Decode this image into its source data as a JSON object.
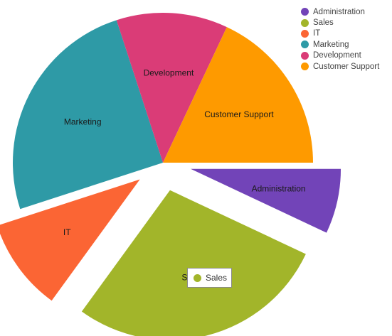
{
  "chart_data": {
    "type": "pie",
    "categories": [
      "Administration",
      "Sales",
      "IT",
      "Marketing",
      "Development",
      "Customer Support"
    ],
    "values": [
      7,
      28,
      10,
      25,
      12,
      18
    ],
    "colors": [
      "#7244b8",
      "#a2b52a",
      "#fb6534",
      "#2e9aa6",
      "#da3c77",
      "#fe9a00"
    ],
    "exploded": [
      "Administration",
      "Sales",
      "IT"
    ],
    "legend": "top-right",
    "title": ""
  },
  "tooltip": {
    "series": "Sales",
    "color": "#a2b52a"
  }
}
